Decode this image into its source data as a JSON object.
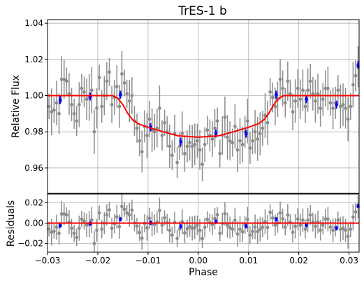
{
  "chart_data": [
    {
      "type": "scatter",
      "title": "TrES-1 b",
      "xlabel": "",
      "ylabel": "Relative Flux",
      "xlim": [
        -0.03,
        0.032
      ],
      "ylim": [
        0.946,
        1.042
      ],
      "grid": true,
      "x_ticks": [
        -0.03,
        -0.02,
        -0.01,
        0.0,
        0.01,
        0.02,
        0.03
      ],
      "y_ticks": [
        0.96,
        0.98,
        1.0,
        1.02,
        1.04
      ],
      "y_tick_labels": [
        "0.96",
        "0.98",
        "1.00",
        "1.02",
        "1.04"
      ],
      "colors": {
        "raw": "#8c8c8c",
        "binned": "#0000ff",
        "model": "#ff0000"
      },
      "series": [
        {
          "x": [
            -0.0297,
            -0.0292,
            -0.0287,
            -0.0282,
            -0.0277,
            -0.0272,
            -0.0267,
            -0.0262,
            -0.0257,
            -0.0252,
            -0.0247,
            -0.0242,
            -0.0237,
            -0.0232,
            -0.0227,
            -0.0222,
            -0.0217,
            -0.0212,
            -0.0207,
            -0.0202,
            -0.0197,
            -0.0192,
            -0.0187,
            -0.0182,
            -0.0177,
            -0.0172,
            -0.0167,
            -0.0162,
            -0.0157,
            -0.0152,
            -0.0147,
            -0.0142,
            -0.0137,
            -0.0132,
            -0.0127,
            -0.0122,
            -0.0117,
            -0.0112,
            -0.0107,
            -0.0102,
            -0.0097,
            -0.0092,
            -0.0087,
            -0.0082,
            -0.0077,
            -0.0072,
            -0.0067,
            -0.0062,
            -0.0057,
            -0.0052,
            -0.0047,
            -0.0042,
            -0.0037,
            -0.0032,
            -0.0027,
            -0.0022,
            -0.0017,
            -0.0012,
            -0.0007,
            -0.0002,
            0.0003,
            0.0008,
            0.0013,
            0.0018,
            0.0023,
            0.0028,
            0.0033,
            0.0038,
            0.0043,
            0.0048,
            0.0053,
            0.0058,
            0.0063,
            0.0068,
            0.0073,
            0.0078,
            0.0083,
            0.0088,
            0.0093,
            0.0098,
            0.0103,
            0.0108,
            0.0113,
            0.0118,
            0.0123,
            0.0128,
            0.0133,
            0.0138,
            0.0143,
            0.0148,
            0.0153,
            0.0158,
            0.0163,
            0.0168,
            0.0173,
            0.0178,
            0.0183,
            0.0188,
            0.0193,
            0.0198,
            0.0203,
            0.0208,
            0.0213,
            0.0218,
            0.0223,
            0.0228,
            0.0233,
            0.0238,
            0.0243,
            0.0248,
            0.0253,
            0.0258,
            0.0263,
            0.0268,
            0.0273,
            0.0278,
            0.0283,
            0.0288,
            0.0293,
            0.0298,
            0.0303,
            0.0308,
            0.0313,
            0.0318
          ],
          "y": [
            0.994,
            0.991,
            0.992,
            0.996,
            0.99,
            1.009,
            1.009,
            1.008,
            1.001,
            0.995,
            0.99,
            0.986,
            0.995,
            1.004,
            1.002,
            0.998,
            0.999,
            1.003,
            0.98,
            0.993,
            1.01,
            0.994,
            1.0,
            1.008,
            1.013,
            0.995,
            0.999,
            1.005,
            0.994,
            1.012,
            1.007,
            1.001,
            0.997,
            1.0,
            0.986,
            0.982,
            0.975,
            0.969,
            0.983,
            0.978,
            0.987,
            0.981,
            0.98,
            0.982,
            0.993,
            0.978,
            0.985,
            0.98,
            0.972,
            0.967,
            0.979,
            0.963,
            0.972,
            0.979,
            0.968,
            0.972,
            0.974,
            0.972,
            0.973,
            0.975,
            0.97,
            0.962,
            0.973,
            0.981,
            0.978,
            0.976,
            0.982,
            0.986,
            0.968,
            0.978,
            0.988,
            0.977,
            0.975,
            0.974,
            0.983,
            0.97,
            0.975,
            0.973,
            0.98,
            0.986,
            0.971,
            0.975,
            0.98,
            0.976,
            0.979,
            0.982,
            0.989,
            0.985,
            1.002,
            0.999,
            0.994,
            0.998,
            1.009,
            1.004,
            0.996,
            1.008,
            1.001,
            0.991,
            0.997,
            1.004,
            0.998,
            1.003,
            0.994,
            1.003,
            1.008,
            1.001,
            0.997,
            1.001,
            0.993,
            0.998,
            1.004,
            1.004,
            0.996,
            0.993,
            0.996,
            1.003,
            0.994,
            0.995,
            0.993,
            0.987,
            0.994,
            1.006,
            1.011,
            1.016
          ]
        },
        {
          "x": [
            -0.0275,
            -0.0215,
            -0.0155,
            -0.0095,
            -0.0035,
            0.0035,
            0.0095,
            0.0155,
            0.0215,
            0.0275,
            0.0318
          ],
          "y": [
            0.9975,
            0.9995,
            1.0005,
            0.9825,
            0.9745,
            0.979,
            0.979,
            1.0005,
            0.998,
            0.995,
            1.017
          ]
        },
        {
          "x": [
            -0.03,
            -0.017,
            -0.016,
            -0.015,
            -0.014,
            -0.013,
            -0.012,
            -0.01,
            -0.007,
            -0.004,
            0.0,
            0.004,
            0.007,
            0.01,
            0.012,
            0.013,
            0.014,
            0.015,
            0.016,
            0.017,
            0.032
          ],
          "y": [
            1.0,
            1.0,
            0.9985,
            0.995,
            0.99,
            0.9865,
            0.9845,
            0.9825,
            0.98,
            0.9778,
            0.977,
            0.9778,
            0.98,
            0.9825,
            0.9845,
            0.9865,
            0.99,
            0.995,
            0.9985,
            1.0,
            1.0
          ]
        }
      ]
    },
    {
      "type": "scatter",
      "xlabel": "Phase",
      "ylabel": "Residuals",
      "xlim": [
        -0.03,
        0.032
      ],
      "ylim": [
        -0.0285,
        0.0285
      ],
      "grid": true,
      "x_ticks": [
        -0.03,
        -0.02,
        -0.01,
        0.0,
        0.01,
        0.02,
        0.03
      ],
      "x_tick_labels": [
        "−0.03",
        "−0.02",
        "−0.01",
        "0.00",
        "0.01",
        "0.02",
        "0.03"
      ],
      "y_ticks": [
        -0.02,
        0.0,
        0.02
      ],
      "y_tick_labels": [
        "−0.02",
        "0.00",
        "0.02"
      ],
      "zero_line": 0.0
    }
  ]
}
